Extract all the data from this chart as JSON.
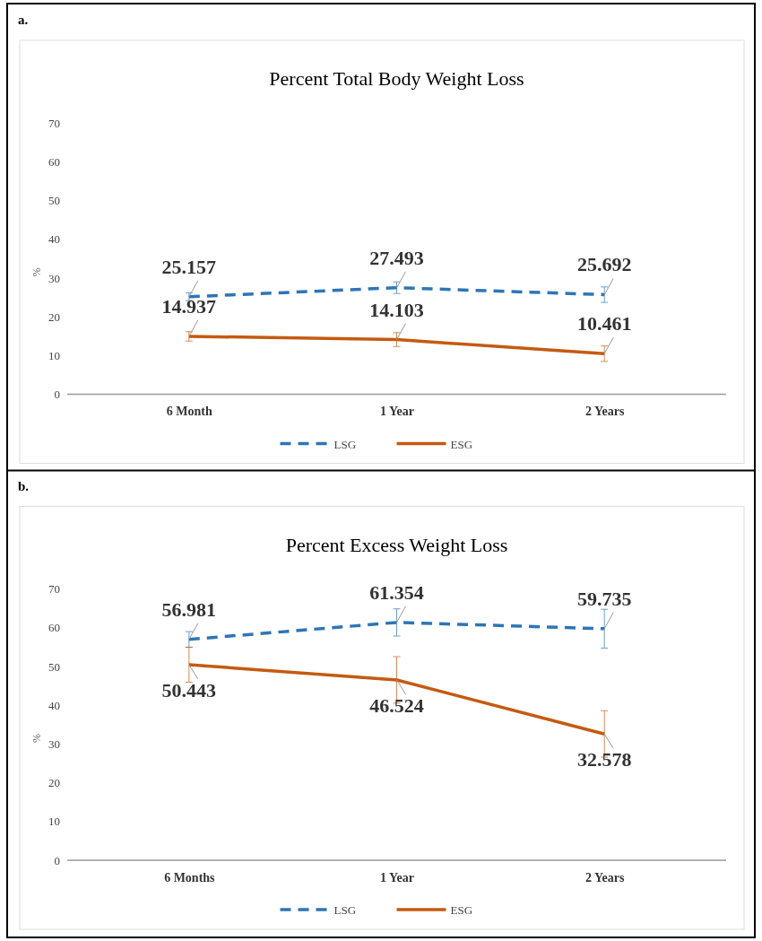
{
  "chart_data": [
    {
      "type": "line",
      "title": "Percent Total Body Weight Loss",
      "ylabel": "%",
      "annotations": [
        "a."
      ],
      "categories": [
        "6 Month",
        "1 Year",
        "2 Years"
      ],
      "ylim": [
        0,
        70
      ],
      "yticks": [
        0,
        10,
        20,
        30,
        40,
        50,
        60,
        70
      ],
      "legend": "bottom",
      "data_labels": true,
      "marker": "none",
      "series": [
        {
          "name": "LSG",
          "color": "#2e75b6",
          "line_style": "dashed",
          "values": [
            25.157,
            27.493,
            25.692
          ],
          "errors": [
            1,
            1.5,
            2
          ]
        },
        {
          "name": "ESG",
          "color": "#c55a11",
          "line_style": "solid",
          "values": [
            14.937,
            14.103,
            10.461
          ],
          "errors": [
            1.2,
            1.8,
            2
          ]
        }
      ]
    },
    {
      "type": "line",
      "title": "Percent Excess Weight Loss",
      "ylabel": "%",
      "annotations": [
        "b."
      ],
      "categories": [
        "6 Months",
        "1 Year",
        "2 Years"
      ],
      "ylim": [
        0,
        70
      ],
      "yticks": [
        0,
        10,
        20,
        30,
        40,
        50,
        60,
        70
      ],
      "legend": "bottom",
      "data_labels": true,
      "marker": "none",
      "series": [
        {
          "name": "LSG",
          "color": "#2e75b6",
          "line_style": "dashed",
          "values": [
            56.981,
            61.354,
            59.735
          ],
          "errors": [
            2,
            3.5,
            5
          ]
        },
        {
          "name": "ESG",
          "color": "#c55a11",
          "line_style": "solid",
          "values": [
            50.443,
            46.524,
            32.578
          ],
          "errors": [
            4.5,
            6,
            6
          ]
        }
      ]
    }
  ]
}
